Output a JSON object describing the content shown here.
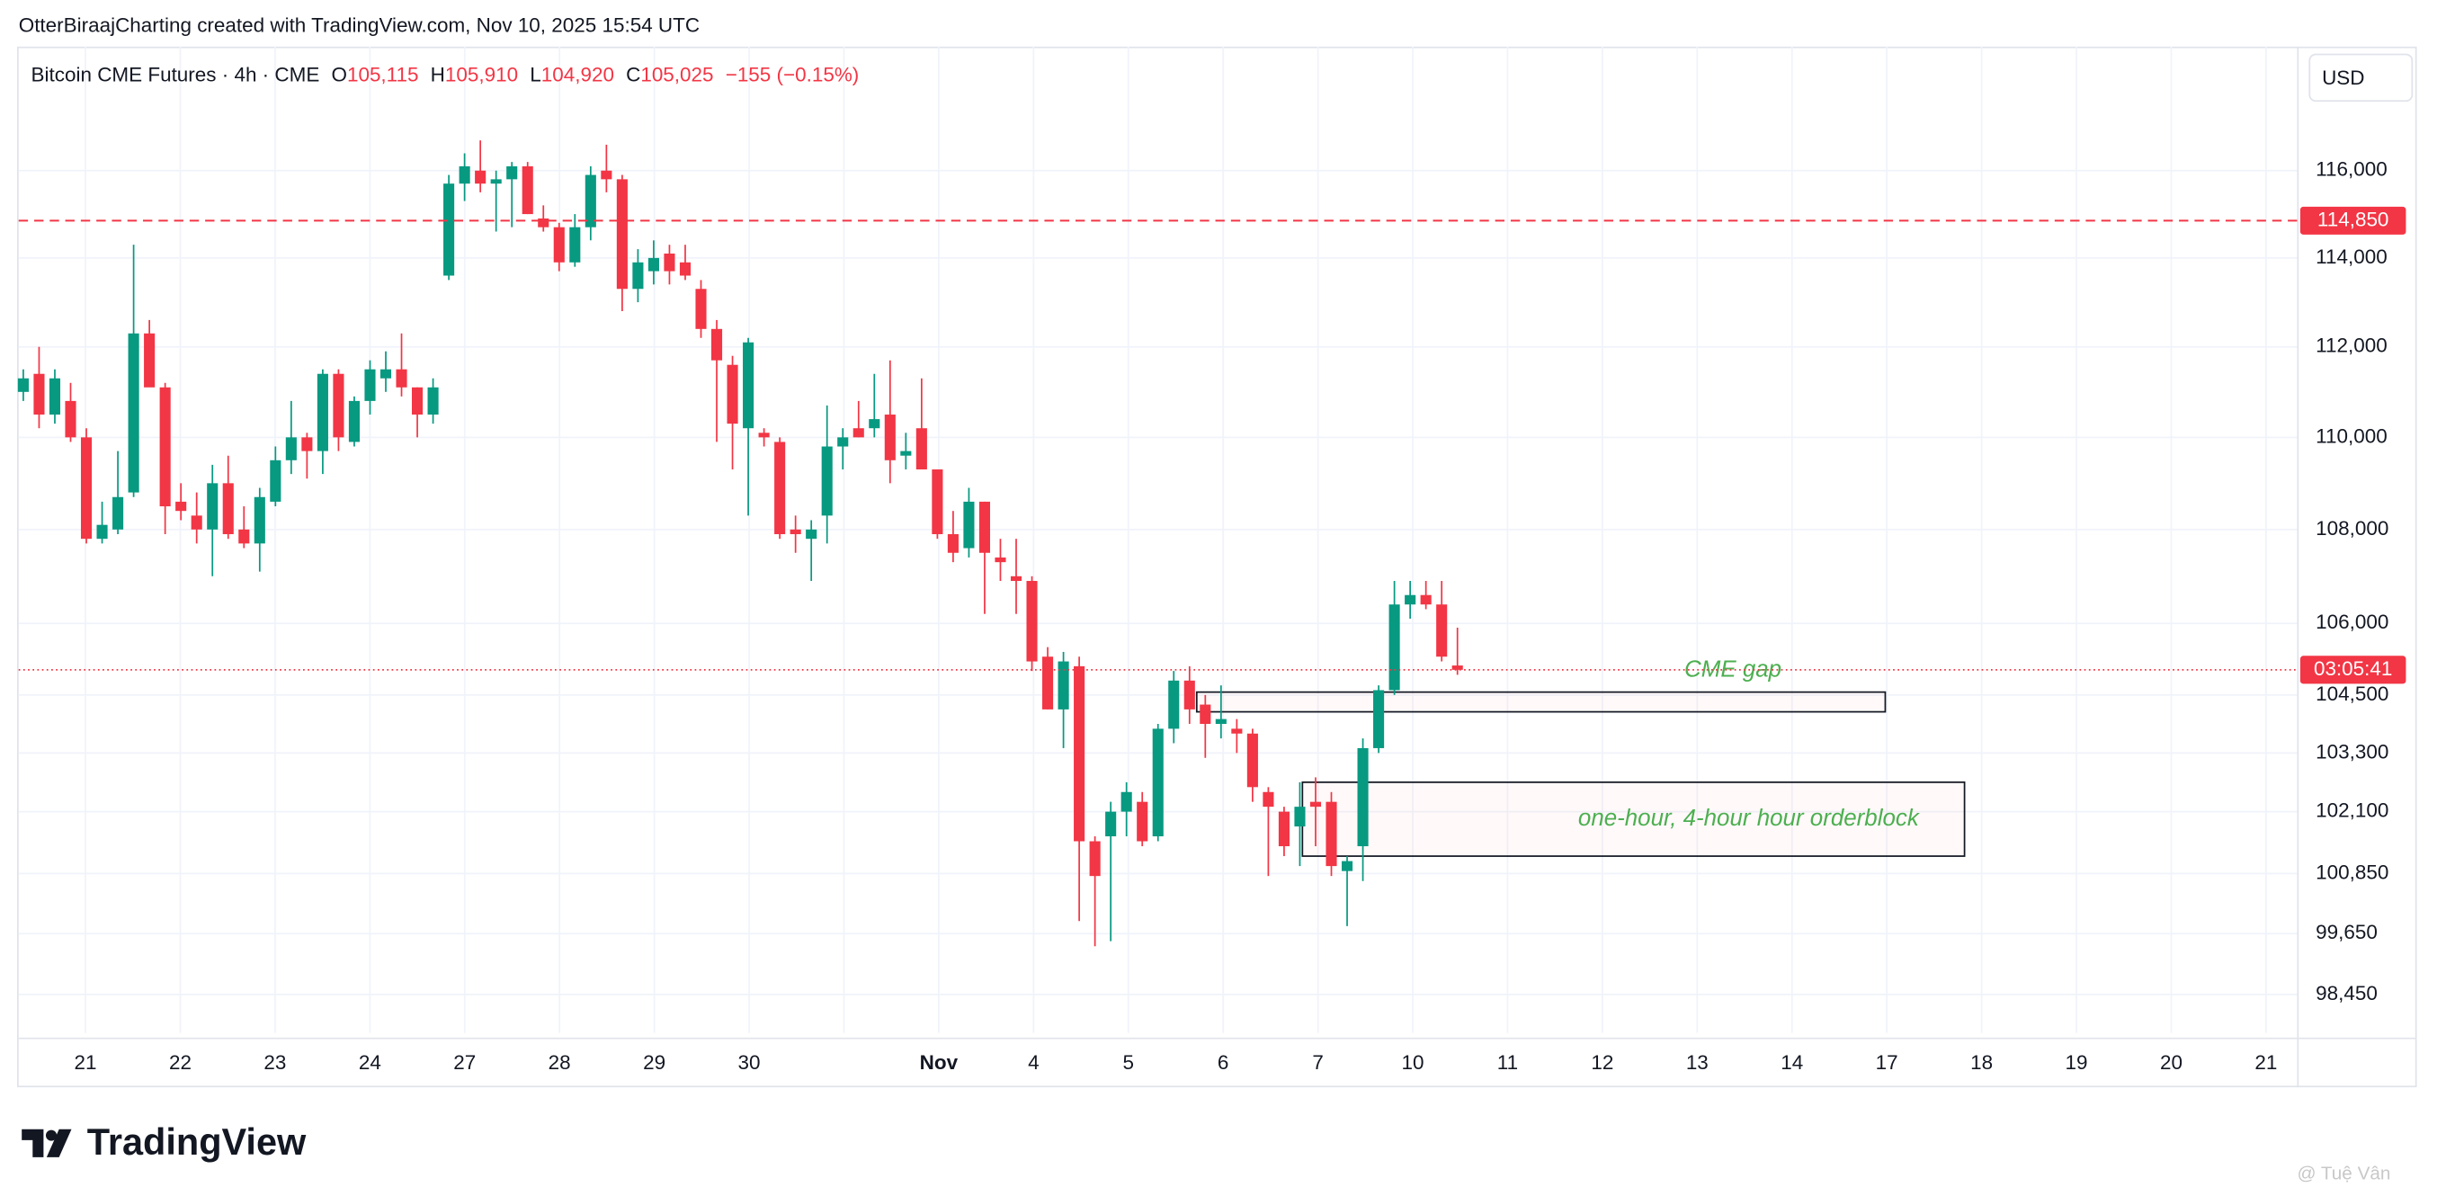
{
  "header": "OtterBiraajCharting created with TradingView.com, Nov 10, 2025 15:54 UTC",
  "logo_text": "TradingView",
  "watermark": "@ Tuệ Vân",
  "chart_data": {
    "type": "candlestick",
    "symbol": "Bitcoin CME Futures · 4h · CME",
    "ohlc_labels": [
      "O",
      "H",
      "L",
      "C"
    ],
    "ohlc_values": [
      "105,115",
      "105,910",
      "104,920",
      "105,025"
    ],
    "change": "−155 (−0.15%)",
    "currency": "USD",
    "log_scale": true,
    "grid": true,
    "up_color": "#089981",
    "down_color": "#f23645",
    "ylim": [
      97700,
      118900
    ],
    "yticks": [
      {
        "value": 116000,
        "label": "116,000"
      },
      {
        "value": 114000,
        "label": "114,000"
      },
      {
        "value": 112000,
        "label": "112,000"
      },
      {
        "value": 110000,
        "label": "110,000"
      },
      {
        "value": 108000,
        "label": "108,000"
      },
      {
        "value": 106000,
        "label": "106,000"
      },
      {
        "value": 104500,
        "label": "104,500"
      },
      {
        "value": 103300,
        "label": "103,300"
      },
      {
        "value": 102100,
        "label": "102,100"
      },
      {
        "value": 100850,
        "label": "100,850"
      },
      {
        "value": 99650,
        "label": "99,650"
      },
      {
        "value": 98450,
        "label": "98,450"
      }
    ],
    "xticks": [
      "21",
      "22",
      "23",
      "24",
      "27",
      "28",
      "29",
      "30",
      null,
      "Nov",
      "4",
      "5",
      "6",
      "7",
      "10",
      "11",
      "12",
      "13",
      "14",
      "17",
      "18",
      "19",
      "20",
      "21"
    ],
    "open": [
      111000,
      111400,
      110500,
      110800,
      110000,
      107800,
      108000,
      108800,
      112300,
      111100,
      108600,
      108300,
      108000,
      109000,
      108000,
      107700,
      108600,
      109500,
      110000,
      109700,
      111400,
      109900,
      110800,
      111300,
      111500,
      111100,
      110500,
      113600,
      115700,
      116000,
      115700,
      115800,
      116100,
      114900,
      114700,
      113900,
      114700,
      116000,
      115800,
      113300,
      113700,
      114100,
      113900,
      113300,
      112400,
      111600,
      110200,
      110100,
      109900,
      108000,
      107800,
      108300,
      109800,
      110200,
      110200,
      110500,
      109600,
      110200,
      109300,
      107900,
      107600,
      108600,
      107400,
      107000,
      106900,
      105300,
      104200,
      105100,
      101500,
      101600,
      102100,
      102300,
      101600,
      103800,
      104800,
      104300,
      103900,
      103800,
      103700,
      102500,
      102100,
      101800,
      102300,
      102300,
      100900,
      101400,
      103400,
      104600,
      106400,
      106600,
      106400,
      105115
    ],
    "high": [
      111500,
      112000,
      111500,
      111200,
      110200,
      108600,
      109700,
      114300,
      112600,
      111200,
      109000,
      108800,
      109400,
      109600,
      108500,
      108900,
      109800,
      110800,
      110100,
      111500,
      111500,
      110900,
      111700,
      111900,
      112300,
      111100,
      111300,
      115900,
      116400,
      116700,
      116000,
      116200,
      116200,
      115200,
      114800,
      115000,
      116100,
      116600,
      115900,
      114200,
      114400,
      114300,
      114300,
      113500,
      112600,
      111800,
      112200,
      110200,
      110000,
      108300,
      108200,
      110700,
      110200,
      110800,
      111400,
      111700,
      110100,
      111300,
      109300,
      108400,
      108900,
      108600,
      107800,
      107800,
      107000,
      105500,
      105400,
      105300,
      101600,
      102300,
      102700,
      102500,
      103900,
      105000,
      105100,
      104500,
      104700,
      104000,
      103800,
      102600,
      102200,
      102700,
      102800,
      102500,
      101200,
      103600,
      104700,
      106900,
      106900,
      106900,
      106900,
      105910
    ],
    "low": [
      110800,
      110200,
      110300,
      109900,
      107700,
      107700,
      107900,
      108700,
      111200,
      107900,
      108200,
      107700,
      107000,
      107800,
      107600,
      107100,
      108500,
      109200,
      109100,
      109200,
      109700,
      109800,
      110500,
      111000,
      110900,
      110000,
      110300,
      113500,
      115300,
      115500,
      114600,
      114700,
      115000,
      114600,
      113700,
      113800,
      114400,
      115500,
      112800,
      113000,
      113400,
      113400,
      113500,
      112200,
      109900,
      109300,
      108300,
      109800,
      107800,
      107500,
      106900,
      107700,
      109300,
      110000,
      110000,
      109000,
      109300,
      109300,
      107800,
      107300,
      107400,
      106200,
      106900,
      106200,
      105000,
      104200,
      103400,
      99900,
      99400,
      99500,
      101600,
      101400,
      101500,
      103500,
      103900,
      103200,
      103600,
      103300,
      102300,
      100800,
      101200,
      101000,
      101400,
      100800,
      99800,
      100700,
      103300,
      104500,
      106100,
      106300,
      105200,
      104920
    ],
    "close": [
      111300,
      110500,
      111300,
      110000,
      107800,
      108100,
      108700,
      112300,
      111100,
      108500,
      108400,
      108000,
      109000,
      107900,
      107700,
      108700,
      109500,
      110000,
      109700,
      111400,
      110000,
      110800,
      111500,
      111500,
      111100,
      110500,
      111100,
      115700,
      116100,
      115700,
      115800,
      116100,
      115000,
      114700,
      113900,
      114700,
      115900,
      115800,
      113300,
      113900,
      114000,
      113700,
      113600,
      112400,
      111700,
      110300,
      112100,
      110000,
      107900,
      107900,
      108000,
      109800,
      110000,
      110000,
      110400,
      109500,
      109700,
      109300,
      107900,
      107500,
      108600,
      107500,
      107300,
      106900,
      105200,
      104200,
      105200,
      101500,
      100800,
      102100,
      102500,
      101500,
      103800,
      104800,
      104200,
      103900,
      104000,
      103700,
      102600,
      102200,
      101400,
      102200,
      102200,
      101000,
      101100,
      103400,
      104600,
      106400,
      106600,
      106400,
      105300,
      105025
    ],
    "hline": {
      "value": 114850,
      "label": "114,850",
      "color": "#f23645"
    },
    "countdown": "03:05:41",
    "zones": [
      {
        "label": "CME gap",
        "top": 104560,
        "bottom": 104150
      },
      {
        "label": "one-hour, 4-hour hour orderblock",
        "top": 102700,
        "bottom": 101200
      }
    ]
  }
}
